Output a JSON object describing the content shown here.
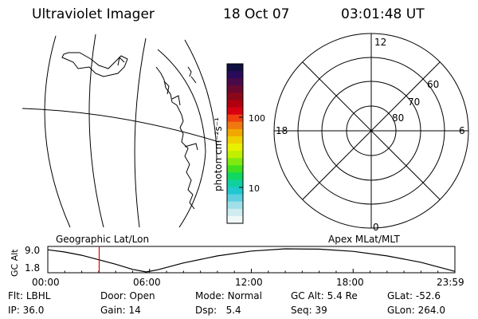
{
  "header": {
    "title": "Ultraviolet Imager",
    "date": "18 Oct 07",
    "time": "03:01:48 UT"
  },
  "colorbar": {
    "label": "photon cm⁻²s⁻¹",
    "tick_labels": [
      "100",
      "10"
    ],
    "colors": [
      "#101040",
      "#2a0a5a",
      "#4a0a4a",
      "#6a0830",
      "#8a0818",
      "#b00010",
      "#d80010",
      "#f04010",
      "#f07810",
      "#f0a800",
      "#f0d000",
      "#e8f000",
      "#c0f000",
      "#80ea10",
      "#40e020",
      "#10d860",
      "#10d0a0",
      "#20c8d0",
      "#60d0e0",
      "#a0e0e8",
      "#d0ecf0",
      "#f0f8f8"
    ]
  },
  "polar": {
    "mlt_labels": {
      "top": "12",
      "left": "18",
      "right": "6",
      "bottom": "0"
    },
    "lat_labels": [
      "60",
      "70",
      "80"
    ]
  },
  "panels": {
    "geo_label": "Geographic Lat/Lon",
    "apex_label": "Apex MLat/MLT"
  },
  "altitude_plot": {
    "ylabel": "GC Alt",
    "y_ticks": [
      "9.0",
      "1.8"
    ],
    "x_ticks": [
      "00:00",
      "06:00",
      "12:00",
      "18:00",
      "23:59"
    ],
    "current_hour": 3.03,
    "y_range": [
      1.8,
      9.0
    ],
    "x_range_hours": [
      0,
      24
    ],
    "series_alt": [
      {
        "h": 0.0,
        "alt": 8.7
      },
      {
        "h": 1.0,
        "alt": 8.0
      },
      {
        "h": 2.0,
        "alt": 7.0
      },
      {
        "h": 3.0,
        "alt": 5.6
      },
      {
        "h": 4.0,
        "alt": 4.2
      },
      {
        "h": 5.0,
        "alt": 2.6
      },
      {
        "h": 5.8,
        "alt": 1.8
      },
      {
        "h": 6.5,
        "alt": 2.5
      },
      {
        "h": 8.0,
        "alt": 4.6
      },
      {
        "h": 10.0,
        "alt": 6.8
      },
      {
        "h": 12.0,
        "alt": 8.3
      },
      {
        "h": 14.0,
        "alt": 9.0
      },
      {
        "h": 16.0,
        "alt": 8.9
      },
      {
        "h": 18.0,
        "alt": 8.2
      },
      {
        "h": 20.0,
        "alt": 6.8
      },
      {
        "h": 22.0,
        "alt": 4.8
      },
      {
        "h": 23.98,
        "alt": 2.0
      }
    ]
  },
  "status": {
    "row1": [
      {
        "key": "flt",
        "label": "Flt:",
        "value": "LBHL"
      },
      {
        "key": "door",
        "label": "Door:",
        "value": "Open"
      },
      {
        "key": "mode",
        "label": "Mode:",
        "value": "Normal"
      },
      {
        "key": "gcalt",
        "label": "GC Alt:",
        "value": "5.4 Re"
      },
      {
        "key": "glat",
        "label": "GLat:",
        "value": "-52.6"
      }
    ],
    "row2": [
      {
        "key": "ip",
        "label": "IP:",
        "value": "36.0"
      },
      {
        "key": "gain",
        "label": "Gain:",
        "value": "14"
      },
      {
        "key": "dsp",
        "label": "Dsp:",
        "value": "5.4"
      },
      {
        "key": "seq",
        "label": "Seq:",
        "value": "39"
      },
      {
        "key": "glon",
        "label": "GLon:",
        "value": "264.0"
      }
    ]
  }
}
